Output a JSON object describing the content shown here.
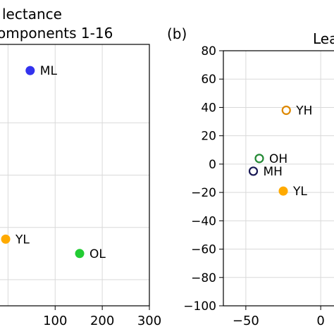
{
  "chart_data": [
    {
      "type": "scatter",
      "title": "lectance",
      "subtitle": "omponents 1-16",
      "xlabel": "",
      "ylabel": "",
      "xlim": [
        -20,
        300
      ],
      "ylim": [
        -100,
        100
      ],
      "xticks": [
        100,
        200,
        300
      ],
      "grid": true,
      "points": [
        {
          "label": "ML",
          "x": 47,
          "y": 80,
          "color": "#3333ee",
          "filled": true
        },
        {
          "label": "YL",
          "x": -5,
          "y": -49,
          "color": "#ffaa00",
          "filled": true
        },
        {
          "label": "OL",
          "x": 152,
          "y": -60,
          "color": "#22cc33",
          "filled": true
        }
      ]
    },
    {
      "type": "scatter",
      "panel_label": "(b)",
      "title": "Lea",
      "xlabel": "",
      "ylabel": "",
      "xlim": [
        -65,
        15
      ],
      "ylim": [
        -100,
        80
      ],
      "xticks": [
        -50,
        0
      ],
      "yticks": [
        80,
        60,
        40,
        20,
        0,
        -20,
        -40,
        -60,
        -80,
        -100
      ],
      "grid": true,
      "points": [
        {
          "label": "YH",
          "x": -23,
          "y": 38,
          "color": "#dd8800",
          "filled": false
        },
        {
          "label": "OH",
          "x": -41,
          "y": 4,
          "color": "#228833",
          "filled": false
        },
        {
          "label": "MH",
          "x": -45,
          "y": -5,
          "color": "#1a1a55",
          "filled": false
        },
        {
          "label": "YL",
          "x": -25,
          "y": -19,
          "color": "#ffaa00",
          "filled": true
        }
      ]
    }
  ]
}
